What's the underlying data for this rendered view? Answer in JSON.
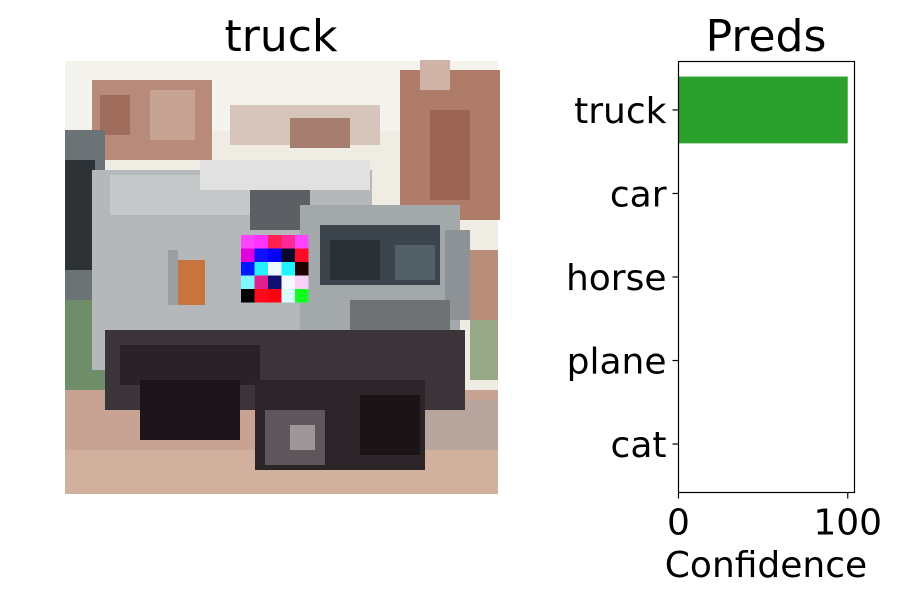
{
  "image_panel": {
    "title": "truck"
  },
  "chart_data": {
    "type": "bar",
    "orientation": "horizontal",
    "title": "Preds",
    "xlabel": "Confidence",
    "ylabel": "",
    "categories": [
      "truck",
      "car",
      "horse",
      "plane",
      "cat"
    ],
    "values": [
      100,
      0,
      0,
      0,
      0
    ],
    "xlim": [
      0,
      104
    ],
    "xticks": [
      0,
      100
    ],
    "bar_color": "#2ca02c",
    "grid": false
  }
}
